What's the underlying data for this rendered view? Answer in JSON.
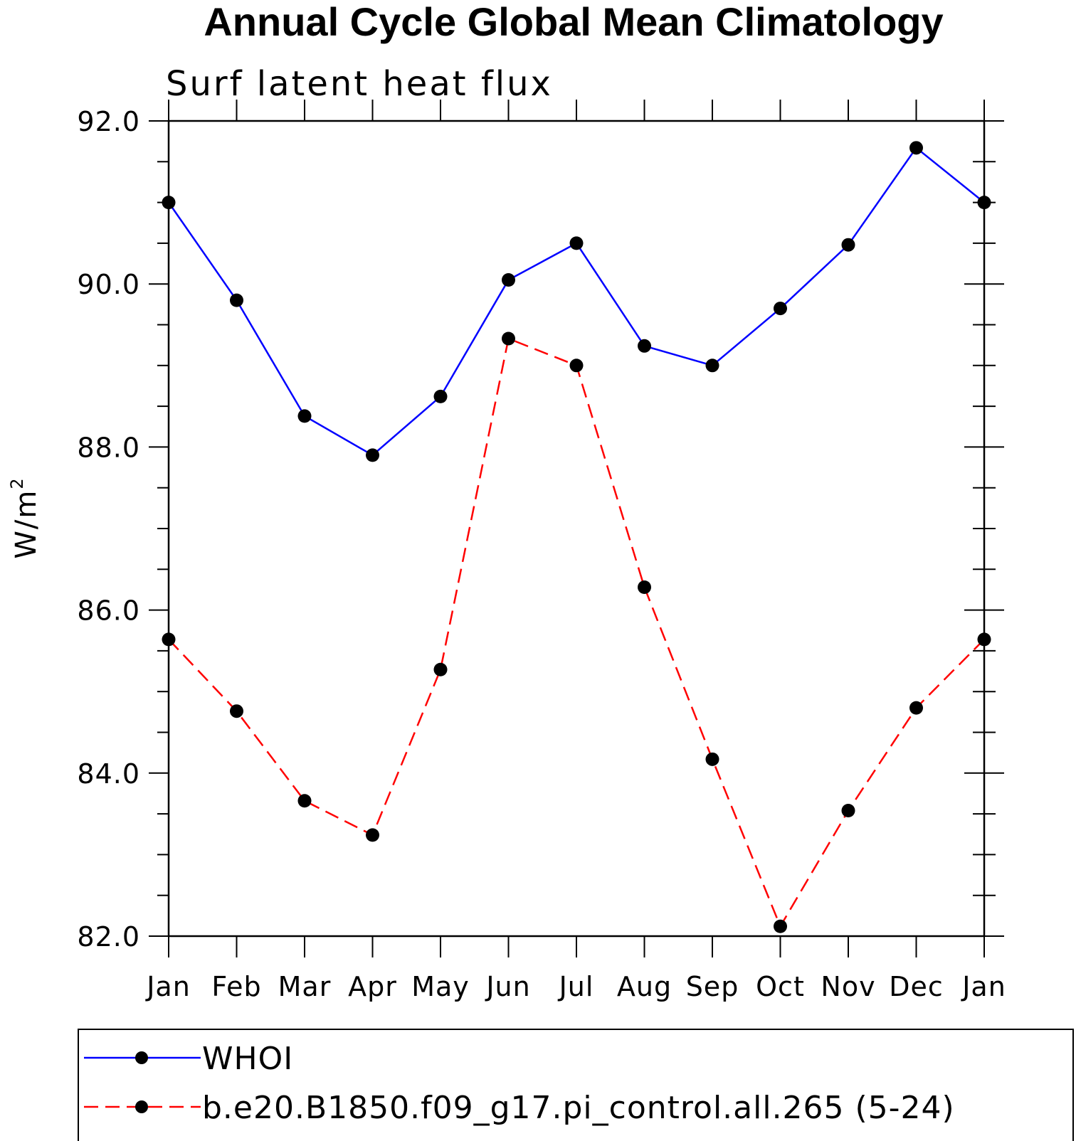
{
  "chart_data": {
    "type": "line",
    "title": "Annual Cycle Global Mean Climatology",
    "subtitle": "Surf latent heat flux",
    "ylabel": "W/m",
    "ylabel_sup": "2",
    "xlabel": "",
    "categories": [
      "Jan",
      "Feb",
      "Mar",
      "Apr",
      "May",
      "Jun",
      "Jul",
      "Aug",
      "Sep",
      "Oct",
      "Nov",
      "Dec",
      "Jan"
    ],
    "ylim": [
      82.0,
      92.0
    ],
    "yticks": [
      82.0,
      84.0,
      86.0,
      88.0,
      90.0,
      92.0
    ],
    "ytick_labels": [
      "82.0",
      "84.0",
      "86.0",
      "88.0",
      "90.0",
      "92.0"
    ],
    "grid": false,
    "legend_placement": "bottom",
    "series": [
      {
        "name": "WHOI",
        "color": "#0000ff",
        "dash": "solid",
        "marker": "filled-circle",
        "values": [
          91.0,
          89.8,
          88.38,
          87.9,
          88.62,
          90.05,
          90.5,
          89.24,
          89.0,
          89.7,
          90.48,
          91.67,
          91.0
        ]
      },
      {
        "name": "b.e20.B1850.f09_g17.pi_control.all.265 (5-24)",
        "color": "#ff0000",
        "dash": "dashed",
        "marker": "filled-circle",
        "values": [
          85.64,
          84.76,
          83.66,
          83.24,
          85.27,
          89.33,
          89.0,
          86.28,
          84.17,
          82.12,
          83.54,
          84.8,
          85.64
        ]
      }
    ]
  }
}
